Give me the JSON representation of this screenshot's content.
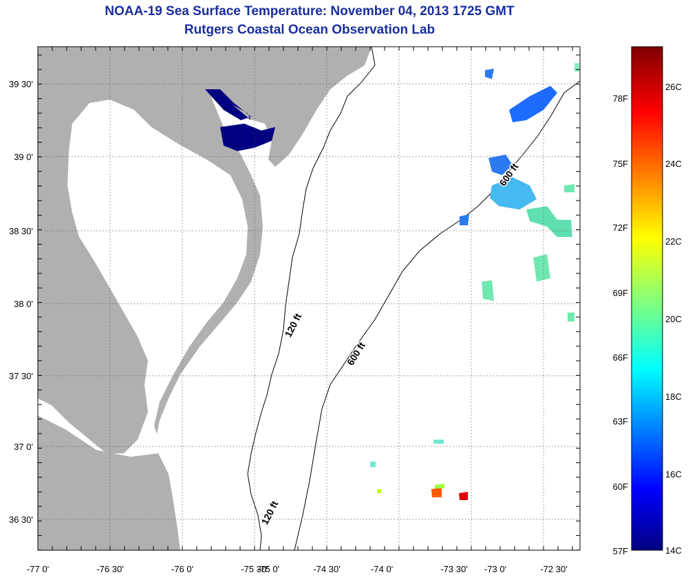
{
  "title": "NOAA-19 Sea Surface Temperature:  November 04, 2013 1725 GMT",
  "subtitle": "Rutgers Coastal Ocean Observation Lab",
  "colors": {
    "land": "#b0b0b0",
    "water": "#ffffff",
    "contour": "#000000",
    "title": "#1a2e9e",
    "grid": "#555555"
  },
  "axes": {
    "lon_labels": [
      "-77 0'",
      "-76 30'",
      "-76 0'",
      "-75 30'",
      "-75 0'",
      "-74 30'",
      "-74 0'",
      "-73 30'",
      "-73 0'",
      "-72 30'"
    ],
    "lat_labels": [
      "39 30'",
      "39 0'",
      "38 30'",
      "38 0'",
      "37 30'",
      "37 0'",
      "36 30'"
    ]
  },
  "contour_labels": [
    "120 ft",
    "600 ft",
    "600 ft",
    "120 ft"
  ],
  "colorbar": {
    "fahrenheit_labels": [
      "78F",
      "75F",
      "72F",
      "69F",
      "66F",
      "63F",
      "60F",
      "57F"
    ],
    "celsius_labels": [
      "26C",
      "24C",
      "22C",
      "20C",
      "18C",
      "16C",
      "14C"
    ]
  }
}
